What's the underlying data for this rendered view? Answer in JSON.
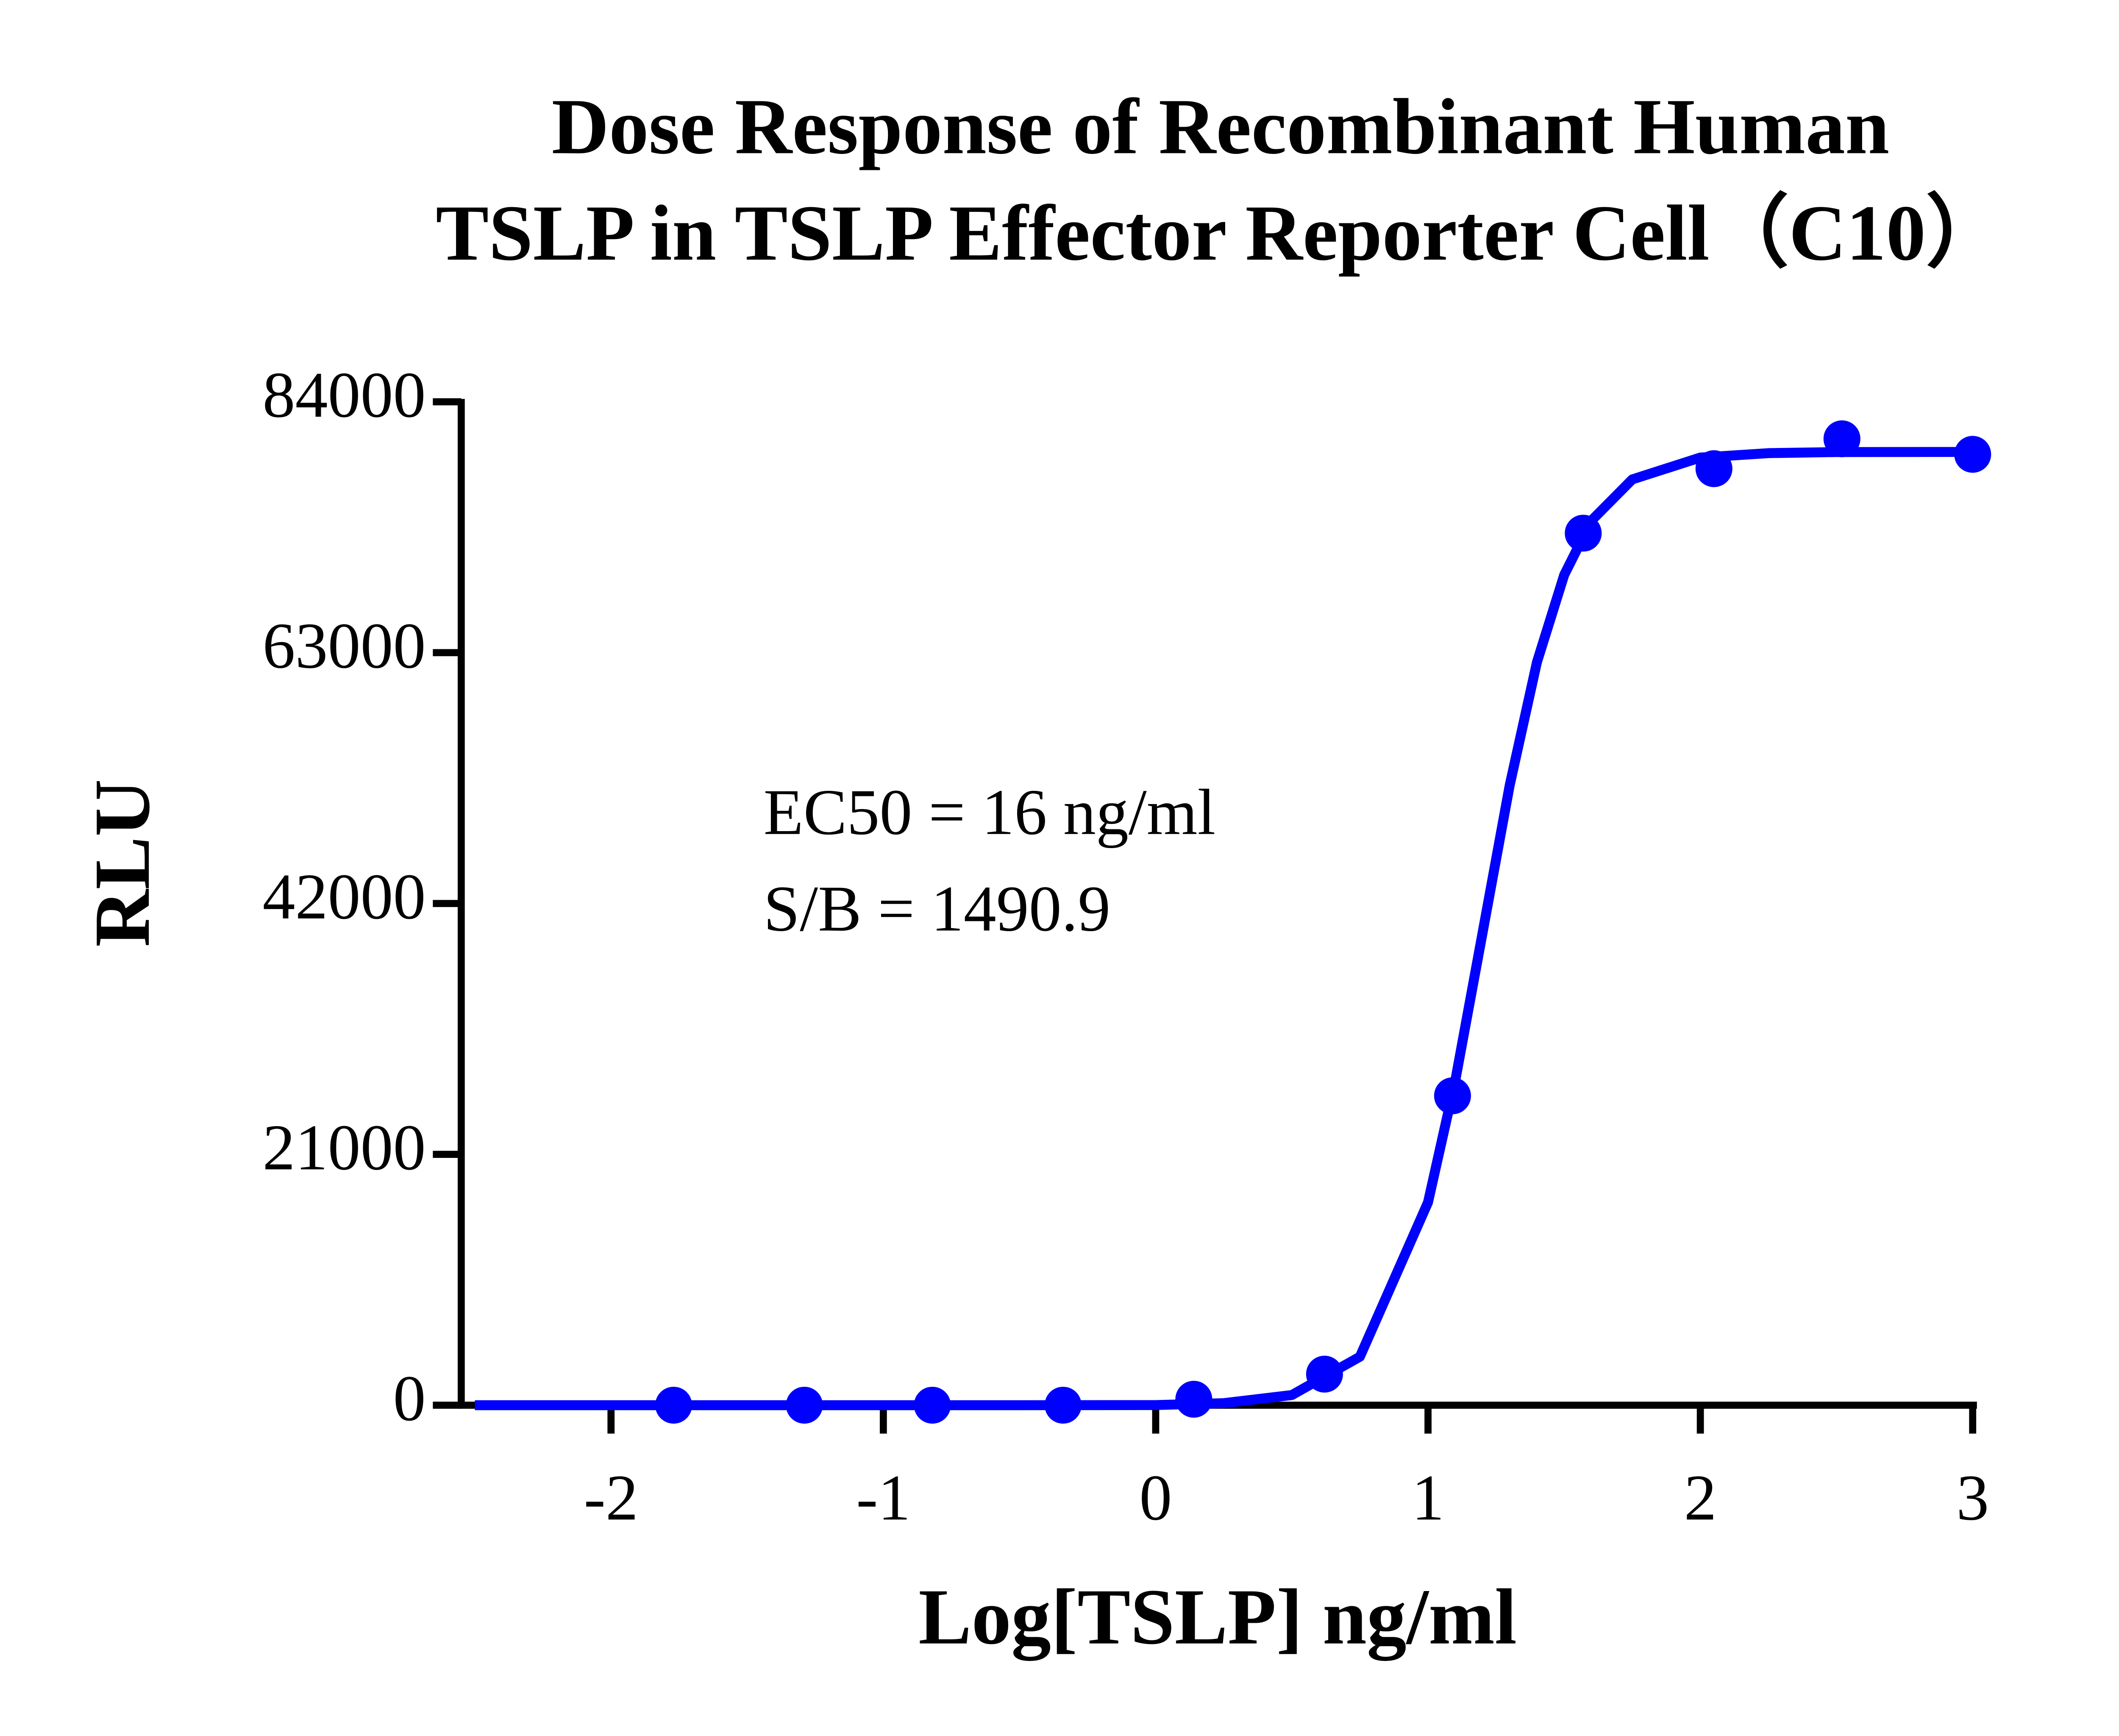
{
  "chart_data": {
    "type": "scatter",
    "title": [
      "Dose Response of Recombinant Human",
      "TSLP in TSLP Effector Reporter Cell（C10）"
    ],
    "annotations": [
      "EC50 = 16 ng/ml",
      "S/B  = 1490.9"
    ],
    "x_label": "Log[TSLP] ng/ml",
    "y_label": "RLU",
    "x": [
      -1.77,
      -1.29,
      -0.82,
      -0.34,
      0.14,
      0.62,
      1.09,
      1.57,
      2.05,
      2.52,
      3.0
    ],
    "values": [
      0,
      0,
      0,
      0,
      500,
      2600,
      25900,
      73000,
      78400,
      80900,
      79600
    ],
    "color": "#0000ff",
    "curve": {
      "x": [
        -2.5,
        -2.0,
        -1.5,
        -1.0,
        -0.5,
        0,
        0.25,
        0.5,
        0.75,
        1.0,
        1.1,
        1.2,
        1.3,
        1.4,
        1.5,
        1.6,
        1.75,
        2.0,
        2.25,
        2.5,
        3.0
      ],
      "values": [
        0,
        0,
        0,
        0,
        0,
        10,
        170,
        850,
        4060,
        16980,
        27150,
        39500,
        51900,
        62200,
        69500,
        74050,
        77500,
        79330,
        79700,
        79790,
        79800
      ]
    },
    "xlim": [
      -2.55,
      3
    ],
    "ylim": [
      0,
      84000
    ],
    "xticks": [
      -2,
      -1,
      0,
      1,
      2,
      3
    ],
    "yticks": [
      0,
      21000,
      42000,
      63000,
      84000
    ]
  }
}
